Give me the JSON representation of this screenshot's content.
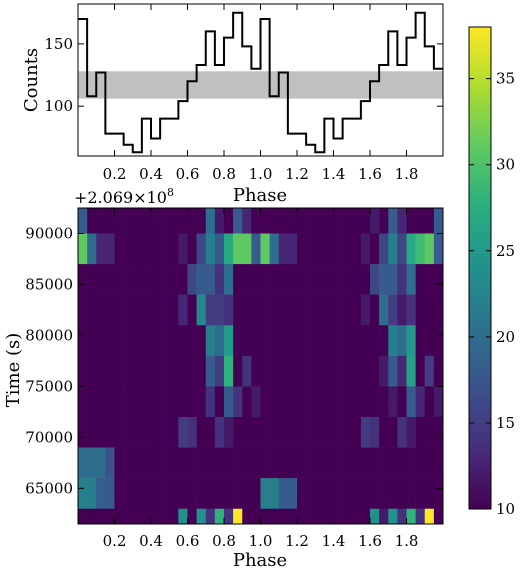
{
  "chart_data": [
    {
      "type": "line",
      "drawstyle": "steps-mid",
      "xlabel": "Phase",
      "ylabel": "Counts",
      "xlim": [
        0,
        2
      ],
      "ylim": [
        60,
        182
      ],
      "xticks": [
        0.2,
        0.4,
        0.6,
        0.8,
        1.0,
        1.2,
        1.4,
        1.6,
        1.8
      ],
      "yticks": [
        100,
        150
      ],
      "band": [
        106,
        128
      ],
      "x": [
        0.025,
        0.075,
        0.125,
        0.175,
        0.225,
        0.275,
        0.325,
        0.375,
        0.425,
        0.475,
        0.525,
        0.575,
        0.625,
        0.675,
        0.725,
        0.775,
        0.825,
        0.875,
        0.925,
        0.975,
        1.025,
        1.075,
        1.125,
        1.175,
        1.225,
        1.275,
        1.325,
        1.375,
        1.425,
        1.475,
        1.525,
        1.575,
        1.625,
        1.675,
        1.725,
        1.775,
        1.825,
        1.875,
        1.925,
        1.975
      ],
      "y": [
        170,
        108,
        127,
        78,
        78,
        69,
        63,
        90,
        74,
        90,
        90,
        104,
        120,
        133,
        160,
        133,
        155,
        175,
        148,
        130,
        170,
        108,
        127,
        78,
        78,
        69,
        63,
        90,
        74,
        90,
        90,
        104,
        120,
        133,
        160,
        133,
        155,
        175,
        148,
        130
      ]
    },
    {
      "type": "heatmap",
      "xlabel": "Phase",
      "ylabel": "Time (s)",
      "offset_label": "+2.069×10",
      "offset_exponent": "8",
      "xlim": [
        0,
        2
      ],
      "ylim": [
        61500,
        92500
      ],
      "xticks": [
        0.2,
        0.4,
        0.6,
        0.8,
        1.0,
        1.2,
        1.4,
        1.6,
        1.8
      ],
      "yticks": [
        65000,
        70000,
        75000,
        80000,
        85000,
        90000
      ],
      "n_phase_bins": 40,
      "row_times": [
        91500,
        88500,
        85500,
        82500,
        79500,
        76500,
        73500,
        70500,
        67500,
        64500,
        61500
      ],
      "row_height": 3000,
      "colorbar": {
        "min": 10,
        "max": 38,
        "ticks": [
          10,
          15,
          20,
          25,
          30,
          35
        ]
      },
      "values": [
        [
          18,
          10,
          10,
          10,
          10,
          10,
          10,
          10,
          10,
          10,
          10,
          10,
          10,
          10,
          20,
          12,
          10,
          18,
          13,
          10,
          10,
          10,
          10,
          10,
          10,
          10,
          10,
          10,
          10,
          10,
          10,
          10,
          12,
          10,
          18,
          13,
          10,
          10,
          10,
          18
        ],
        [
          31,
          20,
          13,
          13,
          10,
          10,
          10,
          10,
          10,
          10,
          10,
          12,
          10,
          16,
          22,
          18,
          27,
          31,
          31,
          18,
          31,
          20,
          13,
          13,
          10,
          10,
          10,
          10,
          10,
          10,
          10,
          12,
          10,
          16,
          22,
          16,
          27,
          29,
          31,
          18
        ],
        [
          10,
          10,
          10,
          10,
          10,
          10,
          10,
          10,
          10,
          10,
          10,
          10,
          16,
          18,
          18,
          14,
          20,
          10,
          10,
          10,
          10,
          10,
          10,
          10,
          10,
          10,
          10,
          10,
          10,
          10,
          10,
          10,
          16,
          18,
          18,
          14,
          20,
          10,
          10,
          10
        ],
        [
          10,
          10,
          10,
          10,
          10,
          10,
          10,
          10,
          10,
          10,
          10,
          13,
          10,
          23,
          15,
          15,
          14,
          10,
          10,
          10,
          10,
          10,
          10,
          10,
          10,
          10,
          10,
          10,
          10,
          10,
          10,
          12,
          10,
          20,
          15,
          12,
          14,
          10,
          10,
          10
        ],
        [
          10,
          10,
          10,
          10,
          10,
          10,
          10,
          10,
          10,
          10,
          10,
          10,
          10,
          10,
          22,
          20,
          25,
          10,
          10,
          10,
          10,
          10,
          10,
          10,
          10,
          10,
          10,
          10,
          10,
          10,
          10,
          10,
          10,
          10,
          22,
          20,
          25,
          10,
          10,
          10
        ],
        [
          10,
          10,
          10,
          10,
          10,
          10,
          10,
          10,
          10,
          10,
          10,
          10,
          10,
          10,
          18,
          15,
          28,
          10,
          14,
          10,
          10,
          10,
          10,
          10,
          10,
          10,
          10,
          10,
          10,
          10,
          10,
          10,
          10,
          12,
          18,
          13,
          26,
          10,
          15,
          10
        ],
        [
          10,
          10,
          10,
          10,
          10,
          10,
          10,
          10,
          10,
          10,
          10,
          10,
          10,
          10,
          14,
          10,
          18,
          14,
          10,
          12,
          10,
          10,
          10,
          10,
          10,
          10,
          10,
          10,
          10,
          10,
          10,
          10,
          10,
          10,
          12,
          10,
          18,
          13,
          10,
          12
        ],
        [
          10,
          10,
          10,
          10,
          10,
          10,
          10,
          10,
          10,
          10,
          10,
          15,
          14,
          10,
          10,
          14,
          12,
          10,
          10,
          10,
          10,
          10,
          10,
          10,
          10,
          10,
          10,
          10,
          10,
          10,
          10,
          15,
          14,
          10,
          10,
          14,
          12,
          10,
          10,
          10
        ],
        [
          20,
          20,
          20,
          17,
          10,
          10,
          10,
          10,
          10,
          10,
          10,
          10,
          10,
          10,
          10,
          10,
          10,
          10,
          10,
          10,
          10,
          10,
          10,
          10,
          10,
          10,
          10,
          10,
          10,
          10,
          10,
          10,
          10,
          10,
          10,
          10,
          10,
          10,
          10,
          10
        ],
        [
          22,
          22,
          18,
          18,
          10,
          10,
          10,
          10,
          10,
          10,
          10,
          10,
          10,
          10,
          10,
          10,
          10,
          10,
          10,
          10,
          22,
          22,
          18,
          18,
          10,
          10,
          10,
          10,
          10,
          10,
          10,
          10,
          10,
          10,
          10,
          10,
          10,
          10,
          10,
          10
        ],
        [
          10,
          10,
          10,
          10,
          10,
          10,
          10,
          10,
          10,
          10,
          10,
          24,
          10,
          24,
          14,
          28,
          14,
          38,
          10,
          10,
          10,
          10,
          10,
          10,
          10,
          10,
          10,
          10,
          10,
          10,
          10,
          10,
          24,
          12,
          24,
          14,
          28,
          14,
          38,
          10
        ]
      ]
    }
  ]
}
